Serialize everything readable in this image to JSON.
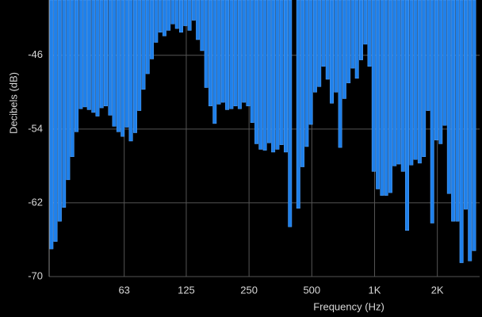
{
  "chart_data": {
    "type": "bar",
    "x_label": "Frequency (Hz)",
    "y_label": "Decibels (dB)",
    "xscale": "log",
    "grid": true,
    "color": "#1f80ea",
    "xlim": [
      27.5,
      3190
    ],
    "xticks": [
      63,
      125,
      250,
      500,
      {
        "value": 1000,
        "label": "1K"
      },
      {
        "value": 2000,
        "label": "2K"
      }
    ],
    "ylim": [
      -70,
      -40
    ],
    "yticks": [
      -46,
      -54,
      -62,
      -70
    ],
    "x": [
      28.2,
      29.5,
      30.9,
      32.4,
      33.9,
      35.5,
      37.2,
      39.0,
      40.8,
      42.7,
      44.8,
      46.9,
      49.1,
      51.4,
      53.9,
      56.4,
      59.1,
      61.9,
      64.8,
      67.8,
      71.1,
      74.4,
      77.9,
      81.6,
      85.5,
      89.5,
      93.8,
      98.2,
      102.8,
      107.7,
      112.8,
      118.1,
      123.7,
      129.6,
      135.7,
      142.1,
      148.8,
      155.9,
      163.3,
      171.0,
      179.1,
      187.5,
      196.4,
      205.7,
      215.4,
      225.6,
      236.3,
      247.4,
      259.1,
      271.4,
      284.2,
      297.7,
      311.8,
      326.5,
      341.9,
      358.1,
      375.1,
      392.8,
      411.4,
      430.8,
      451.2,
      472.5,
      494.9,
      518.3,
      542.8,
      568.5,
      595.4,
      623.5,
      653.0,
      683.9,
      716.2,
      750.1,
      785.6,
      822.7,
      861.7,
      902.4,
      945.1,
      989.7,
      1036.6,
      1085.6,
      1136.9,
      1190.7,
      1247.0,
      1306.0,
      1367.8,
      1432.5,
      1500.2,
      1571.2,
      1645.4,
      1723.3,
      1804.8,
      1890.1,
      1979.5,
      2073.1,
      2171.2,
      2273.8,
      2381.4,
      2494.1,
      2612.0,
      2735.5,
      2864.9,
      3000.4
    ],
    "values": [
      -67,
      -66.2,
      -64,
      -62.5,
      -59.5,
      -57,
      -54.3,
      -51.8,
      -51.6,
      -51.9,
      -52.2,
      -52.6,
      -51.7,
      -51.5,
      -52.5,
      -53.7,
      -54.3,
      -54.8,
      -53.8,
      -55.3,
      -54.4,
      -52,
      -49.7,
      -48,
      -46.4,
      -44.6,
      -43.5,
      -43.9,
      -43.3,
      -42.6,
      -43.1,
      -43.5,
      -42.8,
      -43.3,
      -42.2,
      -44.3,
      -45.5,
      -49.5,
      -51.5,
      -53.4,
      -51.3,
      -51.1,
      -51.9,
      -51.8,
      -51.5,
      -51.8,
      -51.1,
      -51.5,
      -53.3,
      -55.6,
      -56.2,
      -56.3,
      -55.5,
      -56.5,
      -56.2,
      -55.7,
      -56.5,
      -64.6,
      null,
      -62.6,
      -58.1,
      -55.9,
      -53.5,
      -50,
      -49.4,
      -47.2,
      -48.6,
      -51.2,
      -50,
      -56,
      -50.7,
      -49,
      -47.4,
      -48.5,
      -46.5,
      -44.8,
      -47.2,
      -58.6,
      -60.5,
      -61.2,
      -61.2,
      -60.9,
      -58,
      -57.8,
      -58.6,
      -65,
      -57.9,
      -57.3,
      -57.7,
      -57,
      -52,
      -64.2,
      -55.2,
      -55.6,
      -53.6,
      -61,
      -64,
      -64,
      -68.5,
      -62.7,
      -68.3,
      -67.2
    ]
  }
}
